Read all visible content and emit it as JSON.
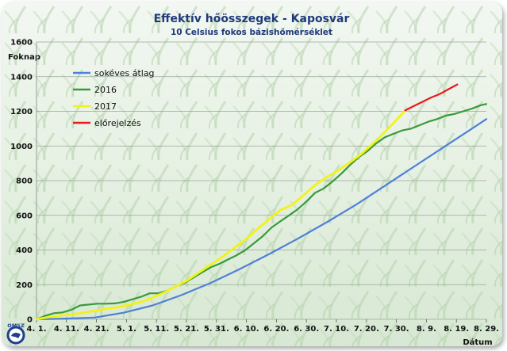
{
  "chart_data": {
    "type": "line",
    "title": "Effektív hőösszegek - Kaposvár",
    "subtitle": "10 Celsius fokos bázishőmérséklet",
    "ylabel": "Foknap",
    "xlabel": "Dátum",
    "ylim": [
      0,
      1600
    ],
    "yticks": [
      0,
      200,
      400,
      600,
      800,
      1000,
      1200,
      1400,
      1600
    ],
    "x_ticks": [
      "4. 1.",
      "4. 11.",
      "4. 21.",
      "5. 1.",
      "5. 11.",
      "5. 21.",
      "5. 31.",
      "6. 10.",
      "6. 20.",
      "6. 30.",
      "7. 10.",
      "7. 20.",
      "7. 30.",
      "8. 9.",
      "8. 19.",
      "8. 29."
    ],
    "x_range_days": [
      0,
      155
    ],
    "grid": "horizontal",
    "legend_position": "top-left",
    "series": [
      {
        "name": "sokéves átlag",
        "color": "#4f81d6",
        "x": [
          0,
          10,
          20,
          30,
          40,
          50,
          60,
          70,
          80,
          90,
          100,
          110,
          120,
          130,
          140,
          150,
          155
        ],
        "values": [
          0,
          4,
          10,
          38,
          80,
          140,
          210,
          290,
          375,
          465,
          560,
          660,
          770,
          880,
          990,
          1100,
          1155
        ]
      },
      {
        "name": "2016",
        "color": "#3a9a3a",
        "x": [
          0,
          3,
          6,
          9,
          12,
          15,
          18,
          21,
          24,
          27,
          30,
          33,
          36,
          39,
          42,
          45,
          48,
          51,
          54,
          57,
          60,
          63,
          66,
          69,
          72,
          75,
          78,
          81,
          84,
          87,
          90,
          93,
          96,
          99,
          102,
          105,
          108,
          111,
          114,
          117,
          120,
          123,
          126,
          129,
          132,
          135,
          138,
          141,
          144,
          147,
          150,
          153,
          155
        ],
        "values": [
          0,
          20,
          35,
          40,
          55,
          80,
          85,
          90,
          90,
          92,
          100,
          115,
          130,
          150,
          150,
          165,
          190,
          210,
          240,
          270,
          300,
          320,
          345,
          370,
          400,
          440,
          480,
          530,
          565,
          600,
          635,
          680,
          730,
          755,
          795,
          840,
          890,
          935,
          970,
          1015,
          1050,
          1070,
          1090,
          1100,
          1120,
          1140,
          1155,
          1175,
          1185,
          1200,
          1215,
          1235,
          1242
        ]
      },
      {
        "name": "2017",
        "color": "#f2f21a",
        "x": [
          0,
          4,
          8,
          12,
          16,
          20,
          24,
          28,
          32,
          36,
          40,
          44,
          48,
          52,
          56,
          60,
          64,
          68,
          72,
          76,
          80,
          84,
          88,
          92,
          96,
          100,
          104,
          108,
          112,
          116,
          120,
          124,
          127
        ],
        "values": [
          0,
          12,
          22,
          28,
          38,
          48,
          60,
          70,
          85,
          100,
          125,
          155,
          190,
          225,
          270,
          315,
          360,
          410,
          460,
          520,
          575,
          630,
          660,
          715,
          775,
          820,
          860,
          905,
          955,
          1015,
          1080,
          1150,
          1205
        ]
      },
      {
        "name": "előrejelzés",
        "color": "#e81c1c",
        "x": [
          127,
          130,
          133,
          136,
          139,
          142,
          145
        ],
        "values": [
          1205,
          1230,
          1255,
          1280,
          1300,
          1328,
          1355
        ]
      }
    ]
  },
  "logo": {
    "label": "OMSZ",
    "colors": {
      "ring": "#1f3f8f",
      "fill": "#ffffff"
    }
  }
}
